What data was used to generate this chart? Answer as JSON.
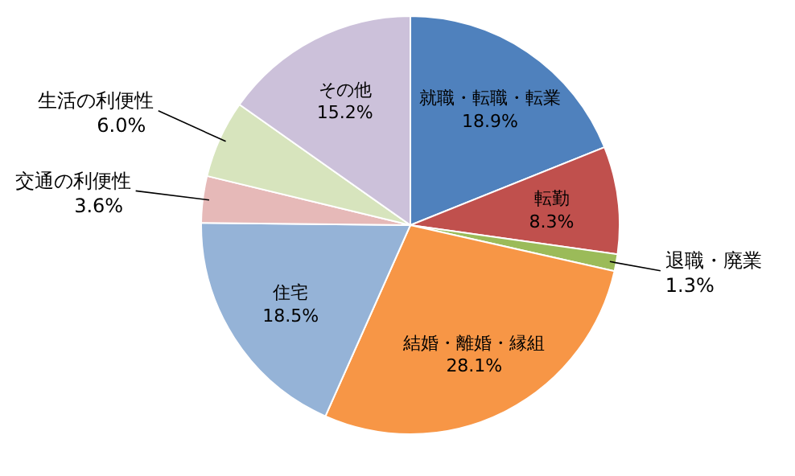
{
  "chart_data": {
    "type": "pie",
    "categories": [
      "就職・転職・転業",
      "転勤",
      "退職・廃業",
      "結婚・離婚・縁組",
      "住宅",
      "交通の利便性",
      "生活の利便性",
      "その他"
    ],
    "values": [
      18.9,
      8.3,
      1.3,
      28.1,
      18.5,
      3.6,
      6.0,
      15.2
    ],
    "value_labels": [
      "18.9%",
      "8.3%",
      "1.3%",
      "28.1%",
      "18.5%",
      "3.6%",
      "6.0%",
      "15.2%"
    ],
    "colors": [
      "#4f81bd",
      "#c0504d",
      "#9bbb59",
      "#f79646",
      "#95b3d7",
      "#e6b9b8",
      "#d7e4bd",
      "#ccc1da"
    ],
    "legend": false
  }
}
